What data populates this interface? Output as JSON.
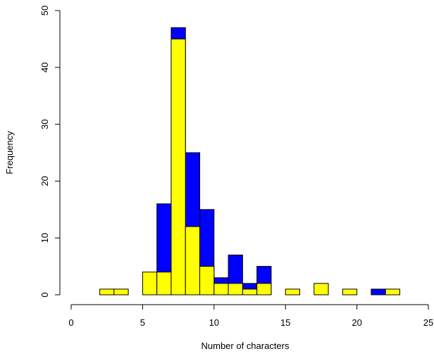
{
  "chart_data": {
    "type": "histogram",
    "x_label": "Number of characters",
    "y_label": "Frequency",
    "bins": [
      0,
      1,
      2,
      3,
      4,
      5,
      6,
      7,
      8,
      9,
      10,
      11,
      12,
      13,
      14,
      15,
      16,
      17,
      18,
      19,
      20,
      21,
      22,
      23,
      24,
      25
    ],
    "series": [
      {
        "color": "#0000ff",
        "values": [
          0,
          0,
          0,
          0,
          0,
          0,
          16,
          47,
          25,
          15,
          3,
          7,
          2,
          5,
          0,
          0,
          0,
          0,
          0,
          0,
          0,
          1,
          0,
          0,
          0
        ]
      },
      {
        "color": "#ffff00",
        "values": [
          0,
          0,
          1,
          1,
          0,
          4,
          4,
          45,
          12,
          5,
          2,
          2,
          1,
          2,
          0,
          1,
          0,
          2,
          0,
          1,
          0,
          0,
          1,
          0,
          0
        ]
      }
    ],
    "xlim": [
      0,
      25
    ],
    "xticks": [
      0,
      5,
      10,
      15,
      20,
      25
    ],
    "ylim": [
      0,
      50
    ],
    "yticks": [
      0,
      10,
      20,
      30,
      40,
      50
    ]
  }
}
